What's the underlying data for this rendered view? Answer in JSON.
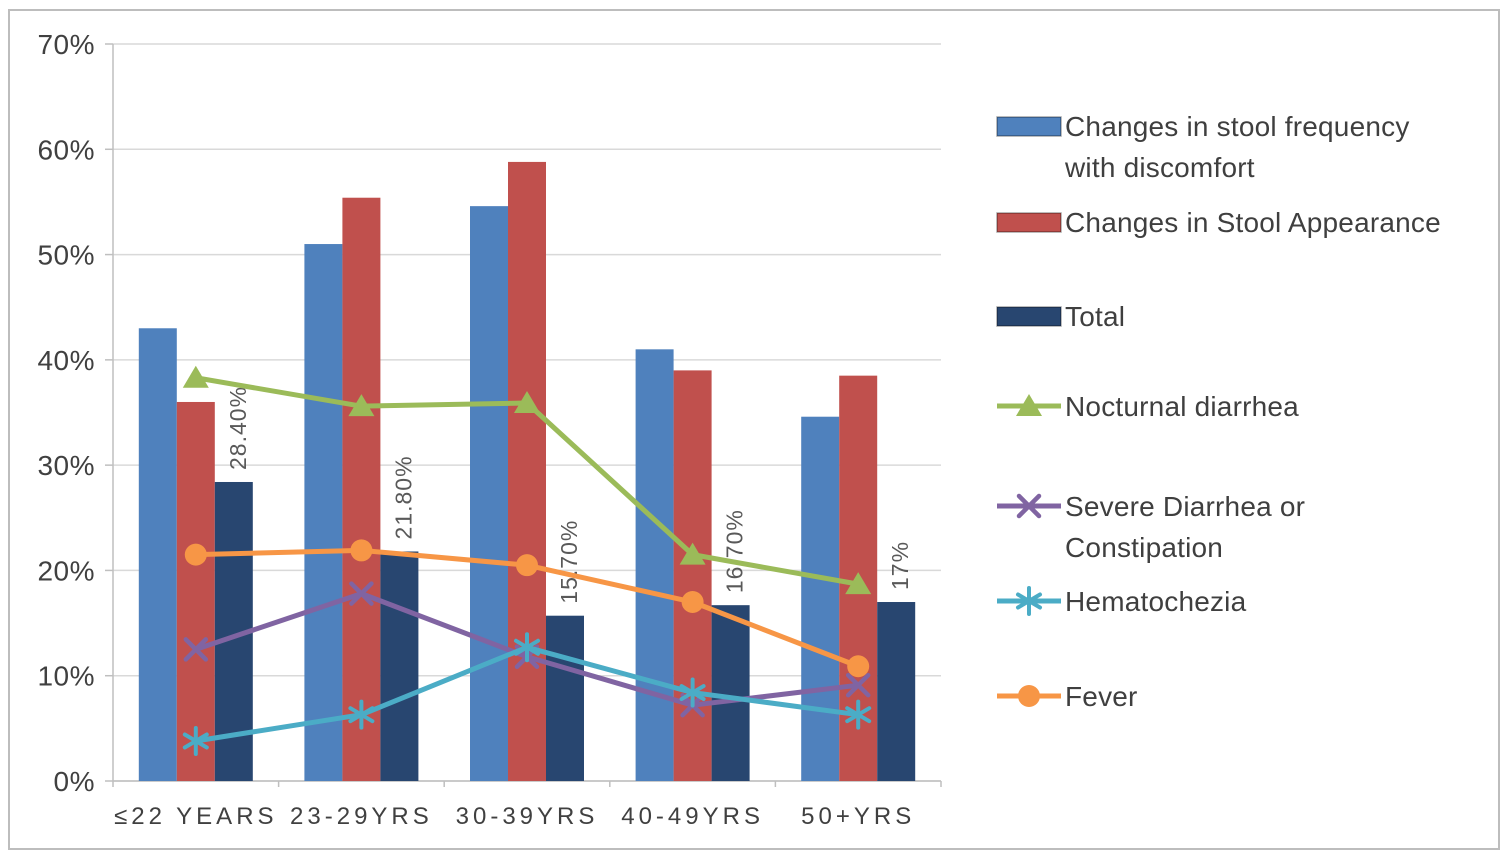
{
  "chart_data": {
    "type": "bar+line",
    "title": "",
    "categories": [
      "≤22 YEARS",
      "23-29YRS",
      "30-39YRS",
      "40-49YRS",
      "50+YRS"
    ],
    "y_axis": {
      "min": 0,
      "max": 70,
      "step": 10,
      "tick_labels": [
        "0%",
        "10%",
        "20%",
        "30%",
        "40%",
        "50%",
        "60%",
        "70%"
      ]
    },
    "grid": true,
    "legend_position": "right",
    "bar_series": [
      {
        "name": "Changes in stool frequency with discomfort",
        "color": "#4F81BD",
        "values": [
          43,
          51,
          54.6,
          41,
          34.6
        ]
      },
      {
        "name": "Changes in Stool Appearance",
        "color": "#C0504D",
        "values": [
          36,
          55.4,
          58.8,
          39,
          38.5
        ]
      },
      {
        "name": "Total",
        "color": "#284670",
        "values": [
          28.4,
          21.8,
          15.7,
          16.7,
          17
        ],
        "data_labels": [
          "28.40%",
          "21.80%",
          "15.70%",
          "16.70%",
          "17%"
        ]
      }
    ],
    "line_series": [
      {
        "name": "Nocturnal diarrhea",
        "color": "#9BBB59",
        "marker": "triangle",
        "values": [
          38.3,
          35.6,
          35.9,
          21.5,
          18.7
        ]
      },
      {
        "name": "Severe Diarrhea or Constipation",
        "color": "#8064A2",
        "marker": "x",
        "values": [
          12.5,
          17.8,
          11.8,
          7.2,
          9.1
        ]
      },
      {
        "name": "Hematochezia",
        "color": "#4BACC6",
        "marker": "asterisk",
        "values": [
          3.8,
          6.3,
          12.7,
          8.4,
          6.3
        ]
      },
      {
        "name": "Fever",
        "color": "#F79646",
        "marker": "circle",
        "values": [
          21.5,
          21.9,
          20.5,
          17,
          10.9
        ]
      }
    ],
    "style": {
      "gridline_color": "#D9D9D9",
      "axis_color": "#BFBFBF",
      "tick_label_color": "#404040",
      "data_label_color": "#595959"
    }
  }
}
